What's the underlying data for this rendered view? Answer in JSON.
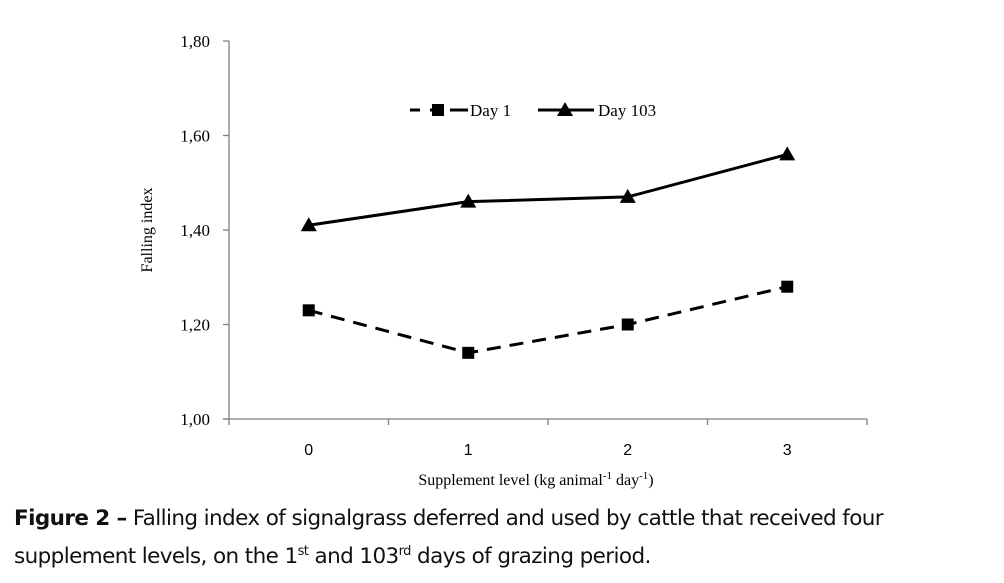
{
  "chart_data": {
    "type": "line",
    "title": "",
    "xlabel": "Supplement level (kg animal",
    "xlabel_parts": [
      "Supplement level (kg animal",
      "-1",
      " day",
      "-1",
      ")"
    ],
    "ylabel": "Falling index",
    "categories": [
      "0",
      "1",
      "2",
      "3"
    ],
    "ylim": [
      1.0,
      1.8
    ],
    "yticks": [
      "1,00",
      "1,20",
      "1,40",
      "1,60",
      "1,80"
    ],
    "ytick_values": [
      1.0,
      1.2,
      1.4,
      1.6,
      1.8
    ],
    "grid": false,
    "legend_position": "top-center",
    "series": [
      {
        "name": "Day 1",
        "style": "dashed",
        "marker": "square",
        "values": [
          1.23,
          1.14,
          1.2,
          1.28
        ]
      },
      {
        "name": "Day 103",
        "style": "solid",
        "marker": "triangle",
        "values": [
          1.41,
          1.46,
          1.47,
          1.56
        ]
      }
    ]
  },
  "caption": {
    "label": "Figure 2 –",
    "text1": " Falling index of signalgrass deferred and used by cattle that received four supplement levels, on the 1",
    "sup1": "st",
    "text2": " and 103",
    "sup2": "rd",
    "text3": " days of grazing period."
  },
  "colors": {
    "line": "#000000",
    "axis": "#808080"
  }
}
